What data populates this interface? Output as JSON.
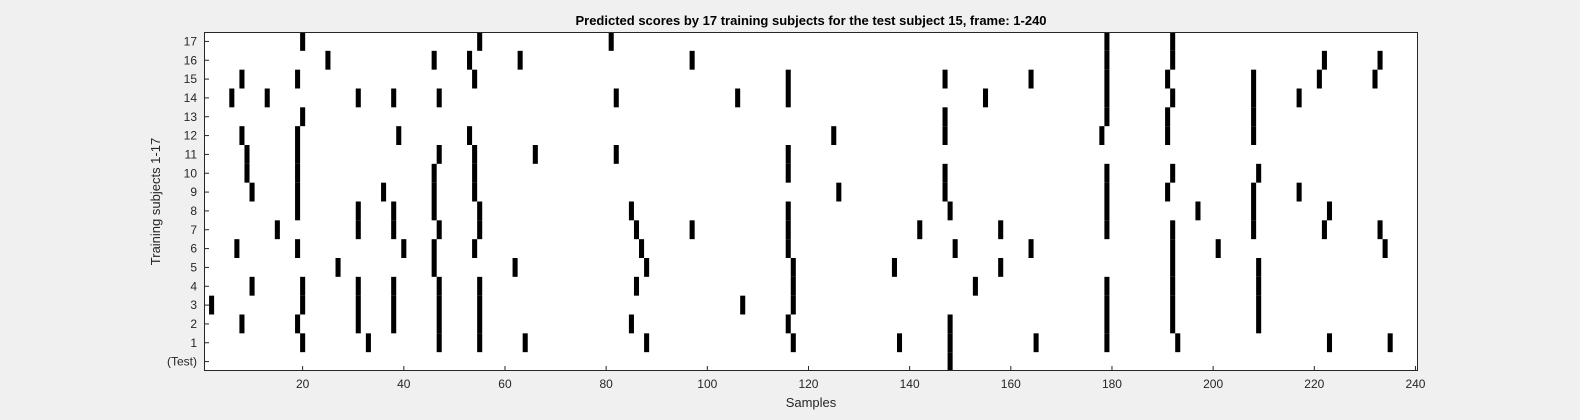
{
  "chart_data": {
    "type": "heatmap",
    "title": "Predicted scores by 17 training subjects for the test subject 15, frame: 1-240",
    "xlabel": "Samples",
    "ylabel": "Training subjects 1-17",
    "xlim": [
      1,
      240
    ],
    "x_ticks": [
      20,
      40,
      60,
      80,
      100,
      120,
      140,
      160,
      180,
      200,
      220,
      240
    ],
    "grid": false,
    "colors": {
      "mark": "#000000",
      "background": "#ffffff",
      "figure": "#f0f0f0",
      "axis": "#262626"
    },
    "rows": [
      {
        "label": "17",
        "samples": [
          20,
          55,
          81,
          179,
          192
        ]
      },
      {
        "label": "16",
        "samples": [
          25,
          46,
          53,
          63,
          97,
          179,
          192,
          222,
          233
        ]
      },
      {
        "label": "15",
        "samples": [
          8,
          19,
          54,
          116,
          147,
          164,
          179,
          191,
          208,
          221,
          232
        ]
      },
      {
        "label": "14",
        "samples": [
          6,
          13,
          31,
          38,
          47,
          82,
          106,
          116,
          155,
          179,
          192,
          208,
          217
        ]
      },
      {
        "label": "13",
        "samples": [
          20,
          147,
          179,
          191,
          208
        ]
      },
      {
        "label": "12",
        "samples": [
          8,
          19,
          39,
          53,
          125,
          147,
          178,
          191,
          208
        ]
      },
      {
        "label": "11",
        "samples": [
          9,
          19,
          47,
          54,
          66,
          82,
          116
        ]
      },
      {
        "label": "10",
        "samples": [
          9,
          19,
          46,
          54,
          116,
          147,
          179,
          192,
          209
        ]
      },
      {
        "label": "9",
        "samples": [
          10,
          19,
          36,
          46,
          54,
          126,
          147,
          179,
          191,
          208,
          217
        ]
      },
      {
        "label": "8",
        "samples": [
          19,
          31,
          38,
          46,
          55,
          85,
          116,
          148,
          179,
          197,
          208,
          223
        ]
      },
      {
        "label": "7",
        "samples": [
          15,
          31,
          38,
          47,
          55,
          86,
          97,
          116,
          142,
          158,
          179,
          192,
          208,
          222,
          233
        ]
      },
      {
        "label": "6",
        "samples": [
          7,
          19,
          40,
          46,
          54,
          87,
          116,
          149,
          164,
          192,
          201,
          234
        ]
      },
      {
        "label": "5",
        "samples": [
          27,
          46,
          62,
          88,
          117,
          137,
          158,
          192,
          209
        ]
      },
      {
        "label": "4",
        "samples": [
          10,
          20,
          31,
          38,
          47,
          55,
          86,
          117,
          153,
          179,
          192,
          209
        ]
      },
      {
        "label": "3",
        "samples": [
          2,
          20,
          31,
          38,
          47,
          55,
          107,
          117,
          179,
          192,
          209
        ]
      },
      {
        "label": "2",
        "samples": [
          8,
          19,
          31,
          38,
          47,
          55,
          85,
          116,
          148,
          179,
          192,
          209
        ]
      },
      {
        "label": "1",
        "samples": [
          20,
          33,
          47,
          55,
          64,
          88,
          117,
          138,
          148,
          165,
          179,
          193,
          223,
          235
        ]
      },
      {
        "label": "(Test)",
        "samples": [
          148
        ]
      }
    ]
  }
}
